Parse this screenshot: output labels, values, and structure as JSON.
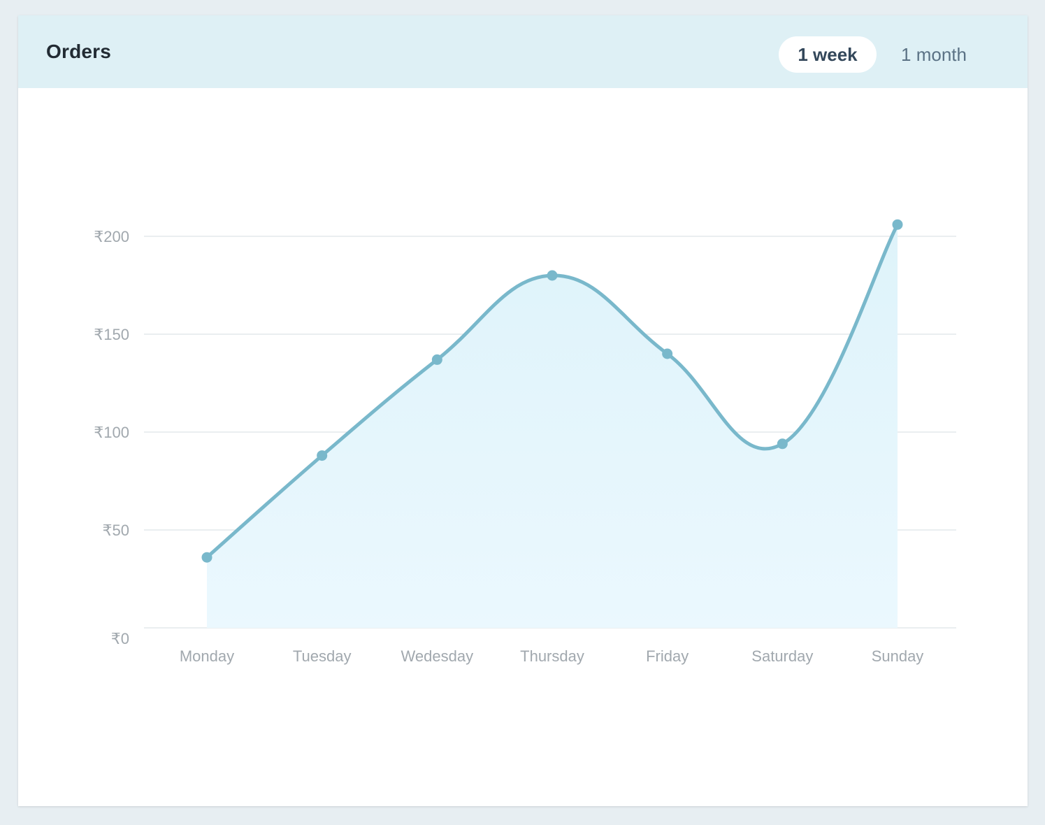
{
  "card": {
    "title": "Orders",
    "ranges": [
      {
        "label": "1 week",
        "selected": true
      },
      {
        "label": "1 month",
        "selected": false
      }
    ]
  },
  "colors": {
    "line": "#79b8cb",
    "area_top": "#def3fa",
    "area_bottom": "#ebf8fe",
    "grid": "#e4e8eb",
    "header_bg": "#def0f5"
  },
  "chart_data": {
    "type": "area",
    "categories": [
      "Monday",
      "Tuesday",
      "Wedesday",
      "Thursday",
      "Friday",
      "Saturday",
      "Sunday"
    ],
    "series": [
      {
        "values": [
          36,
          88,
          137,
          180,
          140,
          94,
          206
        ]
      }
    ],
    "yticks": [
      0,
      50,
      100,
      150,
      200
    ],
    "ytick_labels": [
      "₹0",
      "₹50",
      "₹100",
      "₹150",
      "₹200"
    ],
    "ylim": [
      0,
      200
    ],
    "grid": true,
    "legend": "none",
    "smooth": true
  }
}
